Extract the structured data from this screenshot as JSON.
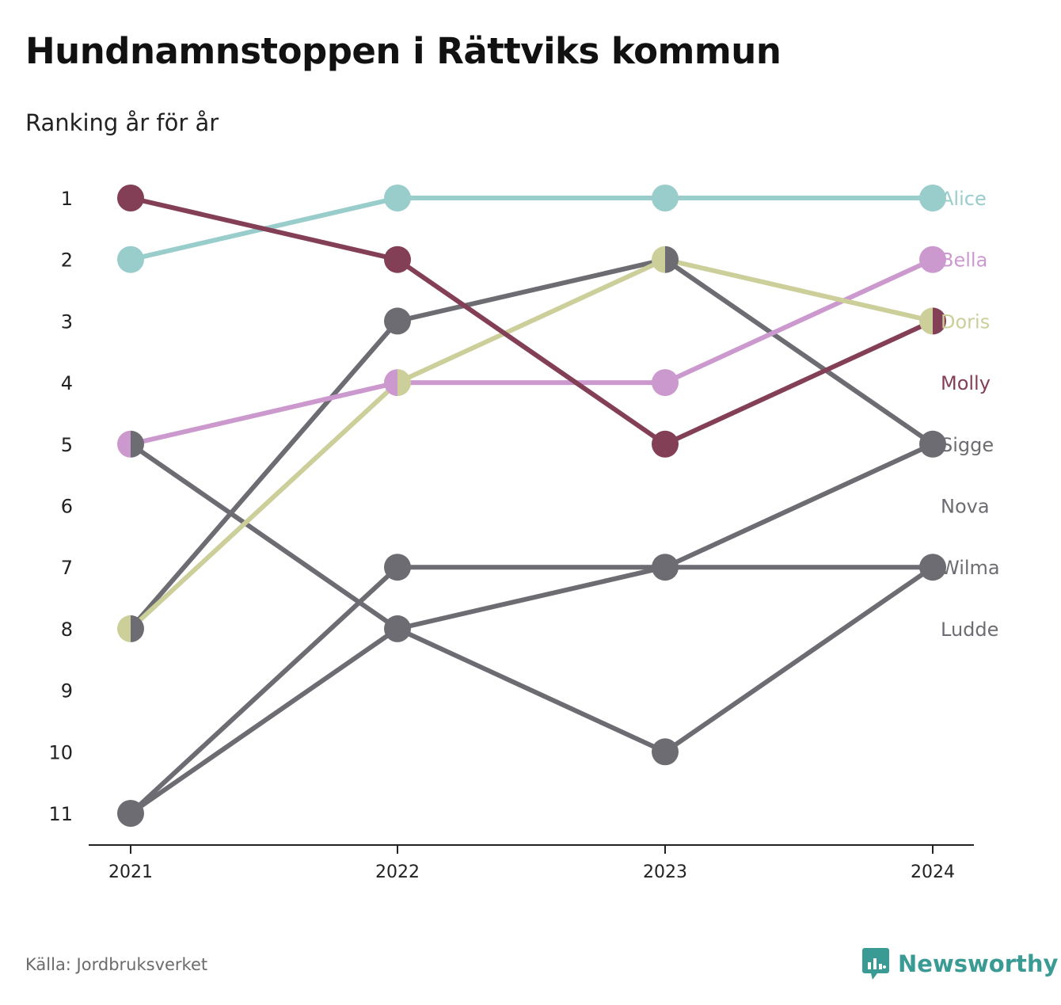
{
  "header": {
    "title": "Hundnamnstoppen i Rättviks kommun",
    "subtitle": "Ranking år för år"
  },
  "footer": {
    "source": "Källa: Jordbruksverket",
    "brand": "Newsworthy",
    "brand_icon": "newsworthy-logo-icon",
    "brand_color": "#3a9b94"
  },
  "chart_data": {
    "type": "line",
    "x": [
      "2021",
      "2022",
      "2023",
      "2024"
    ],
    "y_ticks": [
      1,
      2,
      3,
      4,
      5,
      6,
      7,
      8,
      9,
      10,
      11
    ],
    "ylim": [
      1,
      11
    ],
    "y_inverted": true,
    "grid": false,
    "legend": "right-end labels",
    "series": [
      {
        "name": "Alice",
        "color": "#98cdcc",
        "values": [
          2,
          1,
          1,
          1
        ]
      },
      {
        "name": "Bella",
        "color": "#cc99cf",
        "values": [
          5,
          4,
          4,
          2
        ]
      },
      {
        "name": "Doris",
        "color": "#cccf99",
        "values": [
          8,
          4,
          2,
          3
        ]
      },
      {
        "name": "Molly",
        "color": "#833f55",
        "values": [
          1,
          2,
          5,
          3
        ]
      },
      {
        "name": "Sigge",
        "color": "#6d6c73",
        "values": [
          8,
          3,
          2,
          5
        ]
      },
      {
        "name": "Nova",
        "color": "#6d6c73",
        "values": [
          11,
          8,
          7,
          5
        ]
      },
      {
        "name": "Wilma",
        "color": "#6d6c73",
        "values": [
          11,
          7,
          7,
          7
        ]
      },
      {
        "name": "Ludde",
        "color": "#6d6c73",
        "values": [
          5,
          8,
          10,
          7
        ]
      }
    ],
    "end_labels": [
      {
        "name": "Alice",
        "rank": 1,
        "color": "#98cdcc"
      },
      {
        "name": "Bella",
        "rank": 2,
        "color": "#cc99cf"
      },
      {
        "name": "Doris",
        "rank": 3,
        "color": "#cccf99"
      },
      {
        "name": "Molly",
        "rank": 4,
        "color": "#833f55"
      },
      {
        "name": "Sigge",
        "rank": 5,
        "color": "#6d6c73"
      },
      {
        "name": "Nova",
        "rank": 6,
        "color": "#6d6c73"
      },
      {
        "name": "Wilma",
        "rank": 7,
        "color": "#6d6c73"
      },
      {
        "name": "Ludde",
        "rank": 8,
        "color": "#6d6c73"
      }
    ]
  }
}
